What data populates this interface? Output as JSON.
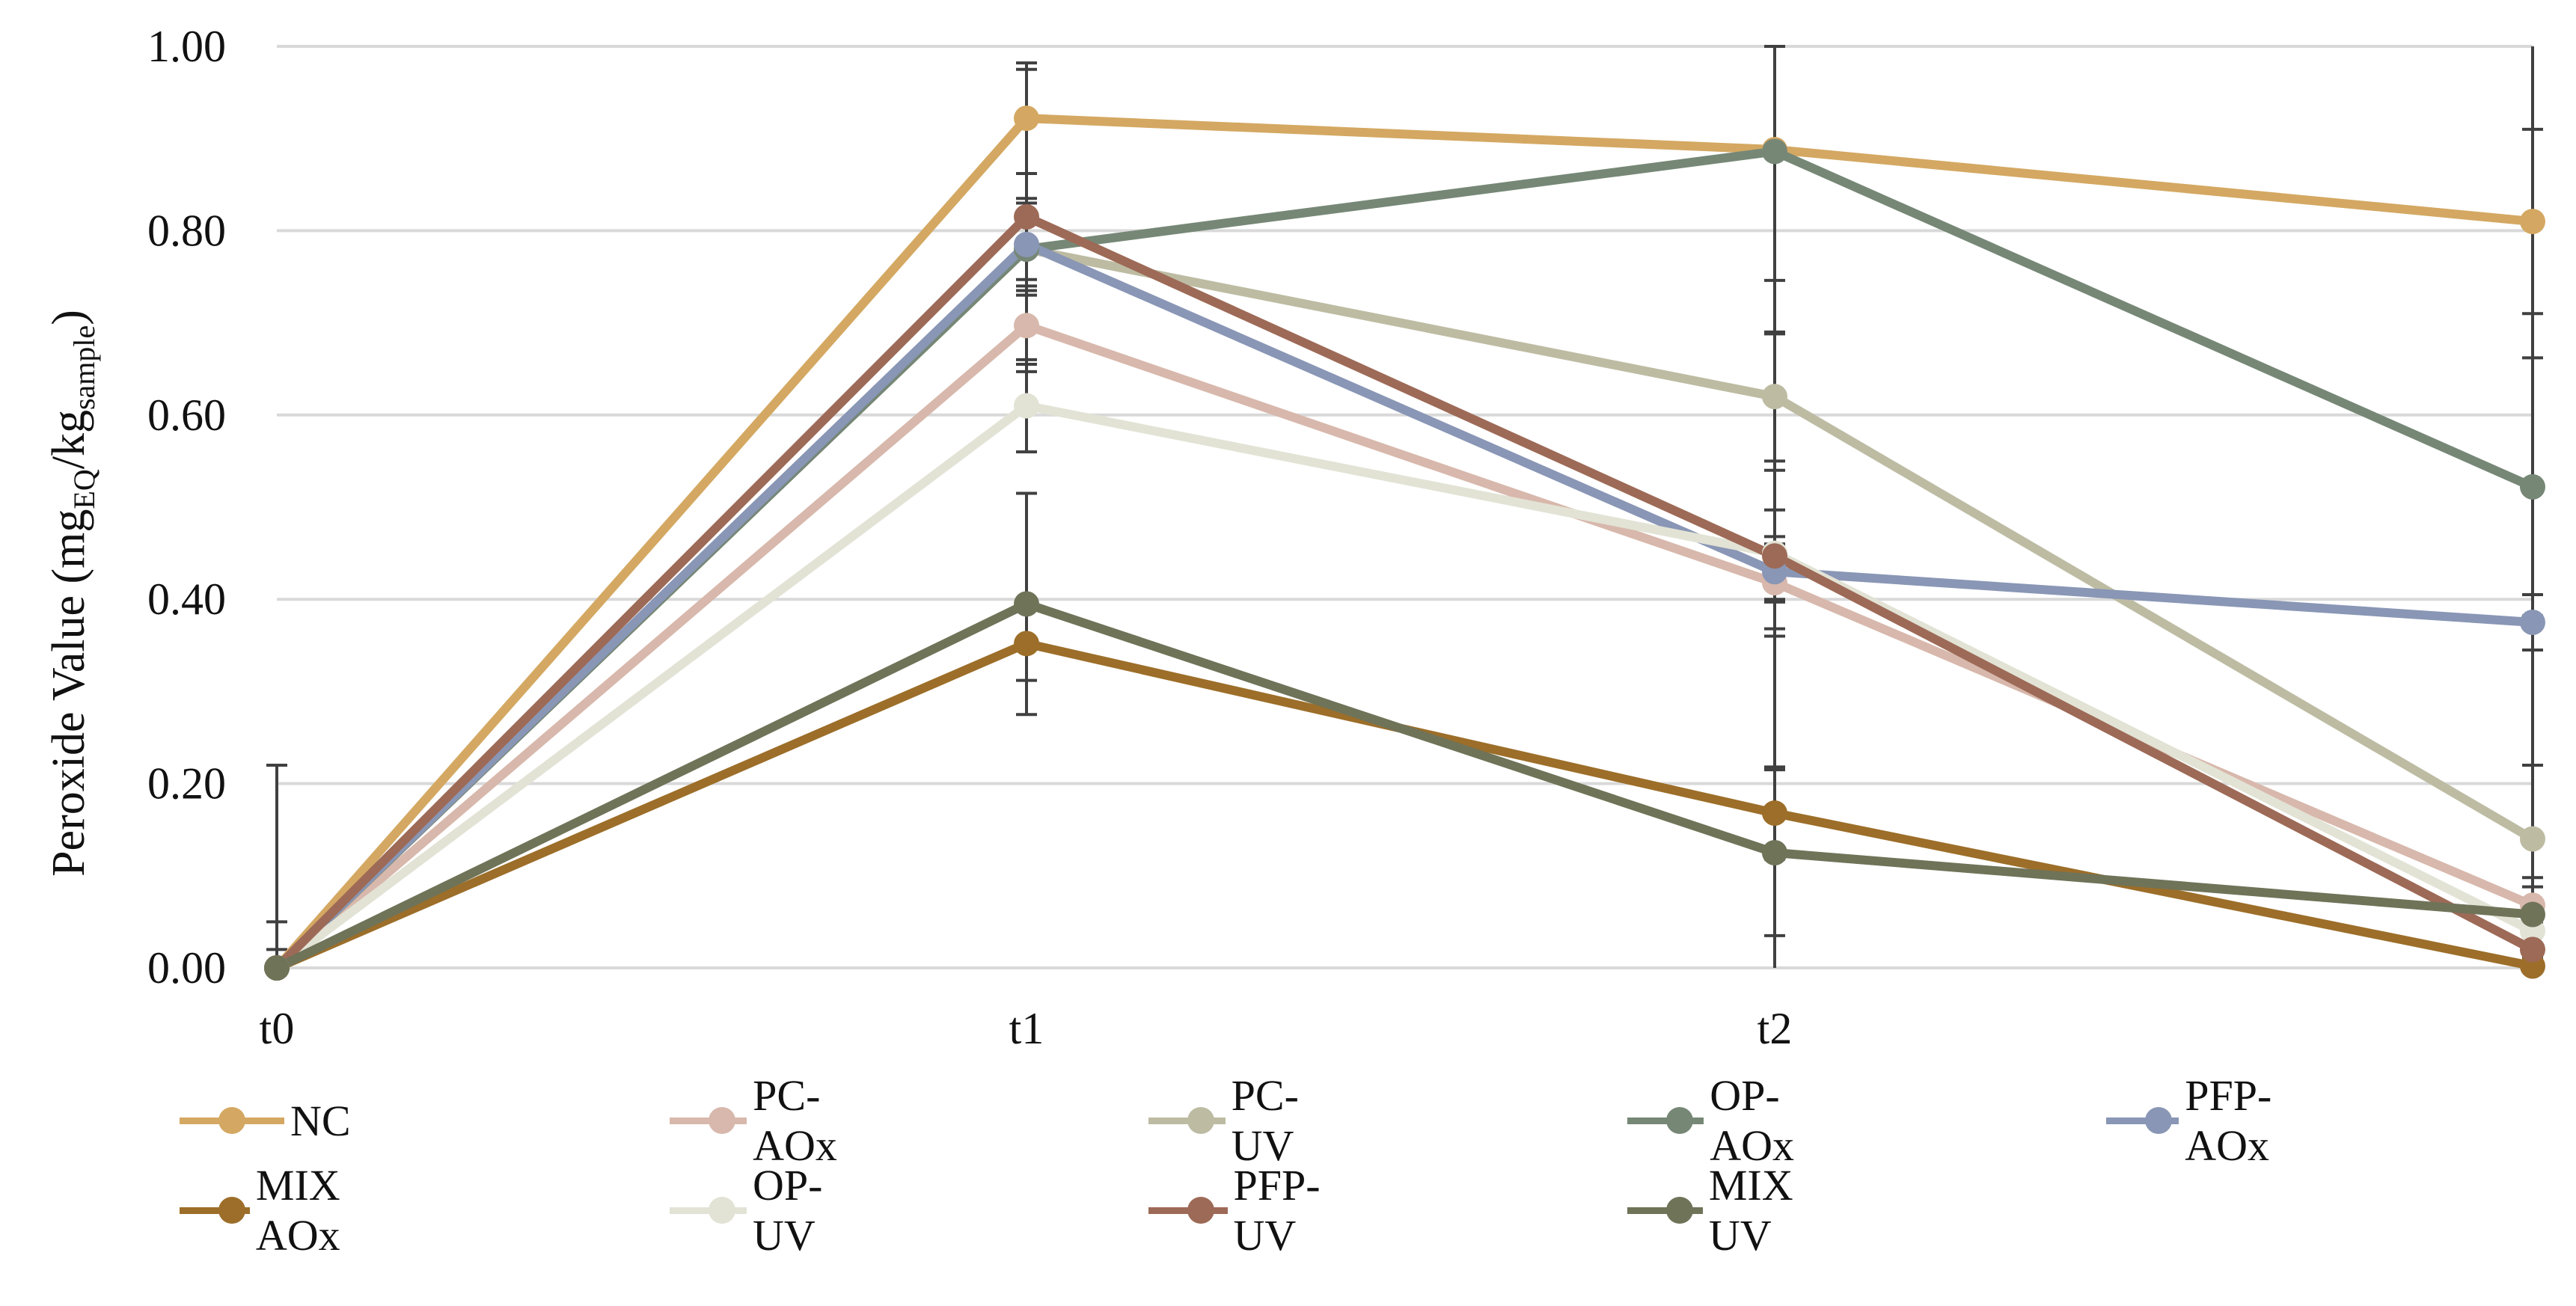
{
  "chart_data": {
    "type": "line",
    "title": "",
    "xlabel": "",
    "ylabel": "Peroxide Value (mg",
    "ylabel_sub1": "EQ",
    "ylabel_mid": "/kg",
    "ylabel_sub2": "sample",
    "ylabel_end": ")",
    "categories": [
      "t0",
      "t1",
      "t2",
      ""
    ],
    "yticks": [
      "0.00",
      "0.20",
      "0.40",
      "0.60",
      "0.80",
      "1.00"
    ],
    "ylim": [
      0,
      1
    ],
    "grid": true,
    "legend_position": "bottom",
    "series": [
      {
        "name": "NC",
        "color": "#D4A862",
        "values": [
          0.0,
          0.922,
          0.888,
          0.81
        ],
        "errors": [
          0,
          0.06,
          0.2,
          0.1
        ]
      },
      {
        "name": "PC-AOx",
        "color": "#D8B8AC",
        "values": [
          0.0,
          0.697,
          0.418,
          0.068
        ],
        "errors": [
          0,
          0.05,
          0.05,
          0.02
        ]
      },
      {
        "name": "PC-UV",
        "color": "#BDBCA3",
        "values": [
          0.0,
          0.78,
          0.62,
          0.14
        ],
        "errors": [
          0,
          0.04,
          0.07,
          0.08
        ]
      },
      {
        "name": "OP-AOx",
        "color": "#768776",
        "values": [
          0.0,
          0.78,
          0.886,
          0.522
        ],
        "errors": [
          0,
          0.05,
          0.14,
          0.14
        ]
      },
      {
        "name": "PFP-AOx",
        "color": "#8996B5",
        "values": [
          0.0,
          0.785,
          0.43,
          0.375
        ],
        "errors": [
          0,
          0.05,
          0.03,
          0.03
        ]
      },
      {
        "name": "MIX AOx",
        "color": "#9C6E29",
        "values": [
          0.0,
          0.352,
          0.168,
          0.002
        ],
        "errors": [
          0,
          0.04,
          0.05,
          0.01
        ]
      },
      {
        "name": "OP-UV",
        "color": "#E2E3D5",
        "values": [
          0.0,
          0.61,
          0.45,
          0.04
        ],
        "errors": [
          0,
          0.05,
          0.09,
          0.03
        ]
      },
      {
        "name": "PFP-UV",
        "color": "#9D6A57",
        "values": [
          0.0,
          0.815,
          0.447,
          0.02
        ],
        "errors": [
          0,
          0.16,
          0.05,
          0.02
        ]
      },
      {
        "name": "MIX UV",
        "color": "#6F7358",
        "values": [
          0.0,
          0.395,
          0.125,
          0.058
        ],
        "errors": [
          0,
          0.12,
          0.09,
          0.04
        ]
      }
    ],
    "y0_errbar": [
      0.02,
      0.05,
      0.22
    ]
  }
}
